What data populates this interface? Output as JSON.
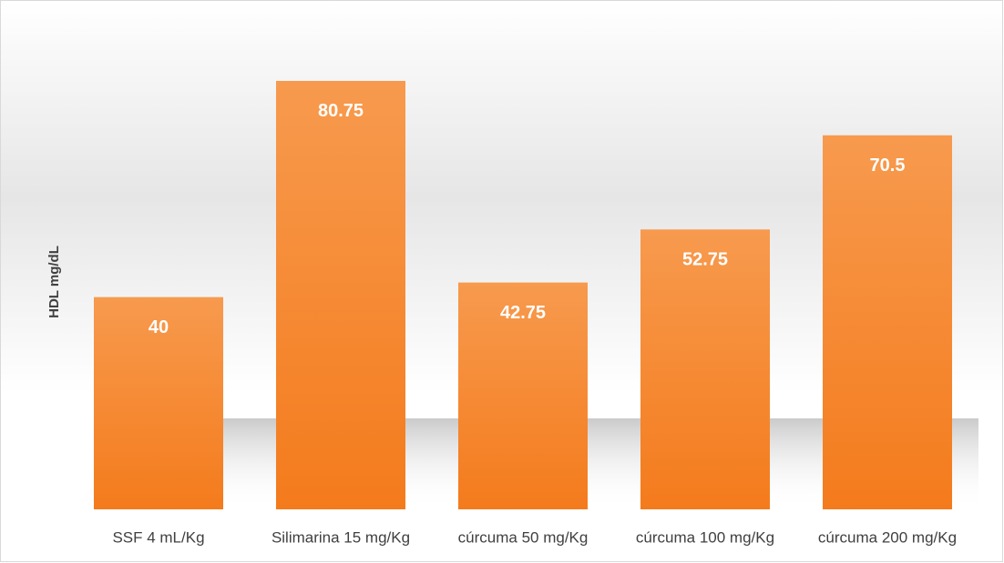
{
  "chart_data": {
    "type": "bar",
    "y_label": "HDL mg/dL",
    "categories": [
      "SSF 4 mL/Kg",
      "Silimarina 15 mg/Kg",
      "cúrcuma 50 mg/Kg",
      "cúrcuma 100 mg/Kg",
      "cúrcuma 200 mg/Kg"
    ],
    "values": [
      40,
      80.75,
      42.75,
      52.75,
      70.5
    ],
    "color": "#f58a33",
    "ylim": [
      0,
      90
    ]
  }
}
